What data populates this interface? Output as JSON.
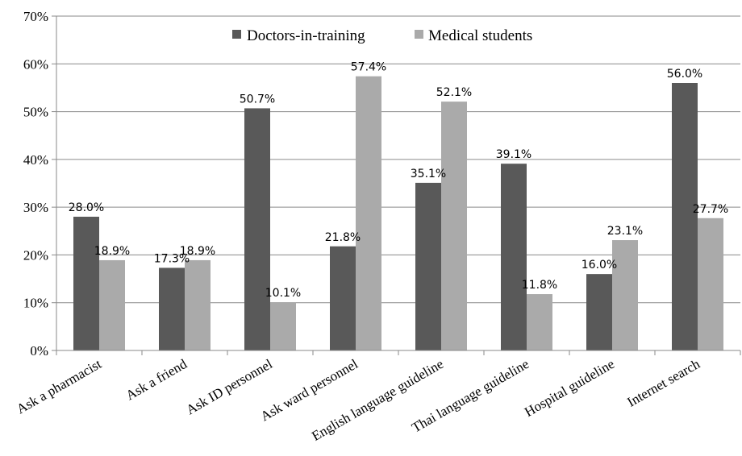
{
  "chart_data": {
    "type": "bar",
    "categories": [
      "Ask a pharmacist",
      "Ask a friend",
      "Ask ID personnel",
      "Ask ward personnel",
      "English language guideline",
      "Thai language guideline",
      "Hospital guideline",
      "Internet search"
    ],
    "series": [
      {
        "name": "Doctors-in-training",
        "color": "#595959",
        "values": [
          28.0,
          17.3,
          50.7,
          21.8,
          35.1,
          39.1,
          16.0,
          56.0
        ],
        "labels": [
          "28.0%",
          "17.3%",
          "50.7%",
          "21.8%",
          "35.1%",
          "39.1%",
          "16.0%",
          "56.0%"
        ]
      },
      {
        "name": "Medical students",
        "color": "#aaaaaa",
        "values": [
          18.9,
          18.9,
          10.1,
          57.4,
          52.1,
          11.8,
          23.1,
          27.7
        ],
        "labels": [
          "18.9%",
          "18.9%",
          "10.1%",
          "57.4%",
          "52.1%",
          "11.8%",
          "23.1%",
          "27.7%"
        ]
      }
    ],
    "ylim": [
      0,
      70
    ],
    "yticks": [
      "0%",
      "10%",
      "20%",
      "30%",
      "40%",
      "50%",
      "60%",
      "70%"
    ],
    "title": "",
    "xlabel": "",
    "ylabel": "",
    "grid": true,
    "legend": "top-center"
  }
}
